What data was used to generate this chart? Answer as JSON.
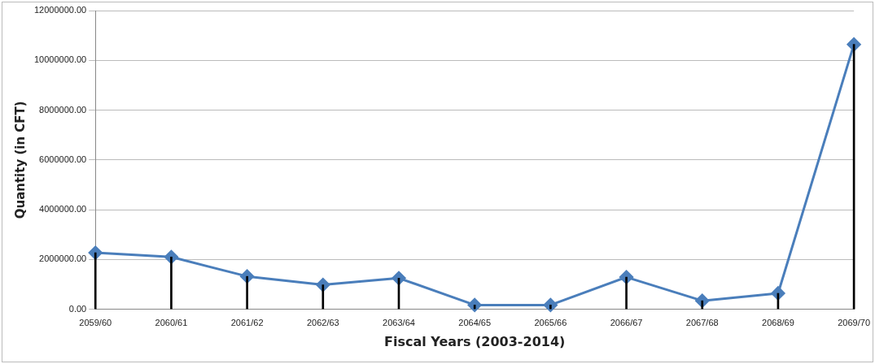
{
  "chart_data": {
    "type": "line",
    "xlabel": "Fiscal Years (2003-2014)",
    "ylabel": "Quantity (in CFT)",
    "categories": [
      "2059/60",
      "2060/61",
      "2061/62",
      "2062/63",
      "2063/64",
      "2064/65",
      "2065/66",
      "2066/67",
      "2067/68",
      "2068/69",
      "2069/70"
    ],
    "series": [
      {
        "color": "#4a7ebb",
        "values": [
          2270000,
          2100000,
          1320000,
          980000,
          1250000,
          170000,
          170000,
          1290000,
          340000,
          640000,
          10640000
        ]
      },
      {
        "type": "bar",
        "color": "#000000",
        "values": [
          2270000,
          2100000,
          1320000,
          980000,
          1250000,
          170000,
          170000,
          1290000,
          340000,
          640000,
          10640000
        ]
      }
    ],
    "ylim": [
      0,
      12000000
    ],
    "yticks": [
      {
        "value": 0,
        "label": "0.00"
      },
      {
        "value": 2000000,
        "label": "2000000.00"
      },
      {
        "value": 4000000,
        "label": "4000000.00"
      },
      {
        "value": 6000000,
        "label": "6000000.00"
      },
      {
        "value": 8000000,
        "label": "8000000.00"
      },
      {
        "value": 10000000,
        "label": "10000000.00"
      },
      {
        "value": 12000000,
        "label": "12000000.00"
      }
    ],
    "grid": "y",
    "marker": "diamond",
    "line_style": "solid",
    "legend": false
  }
}
